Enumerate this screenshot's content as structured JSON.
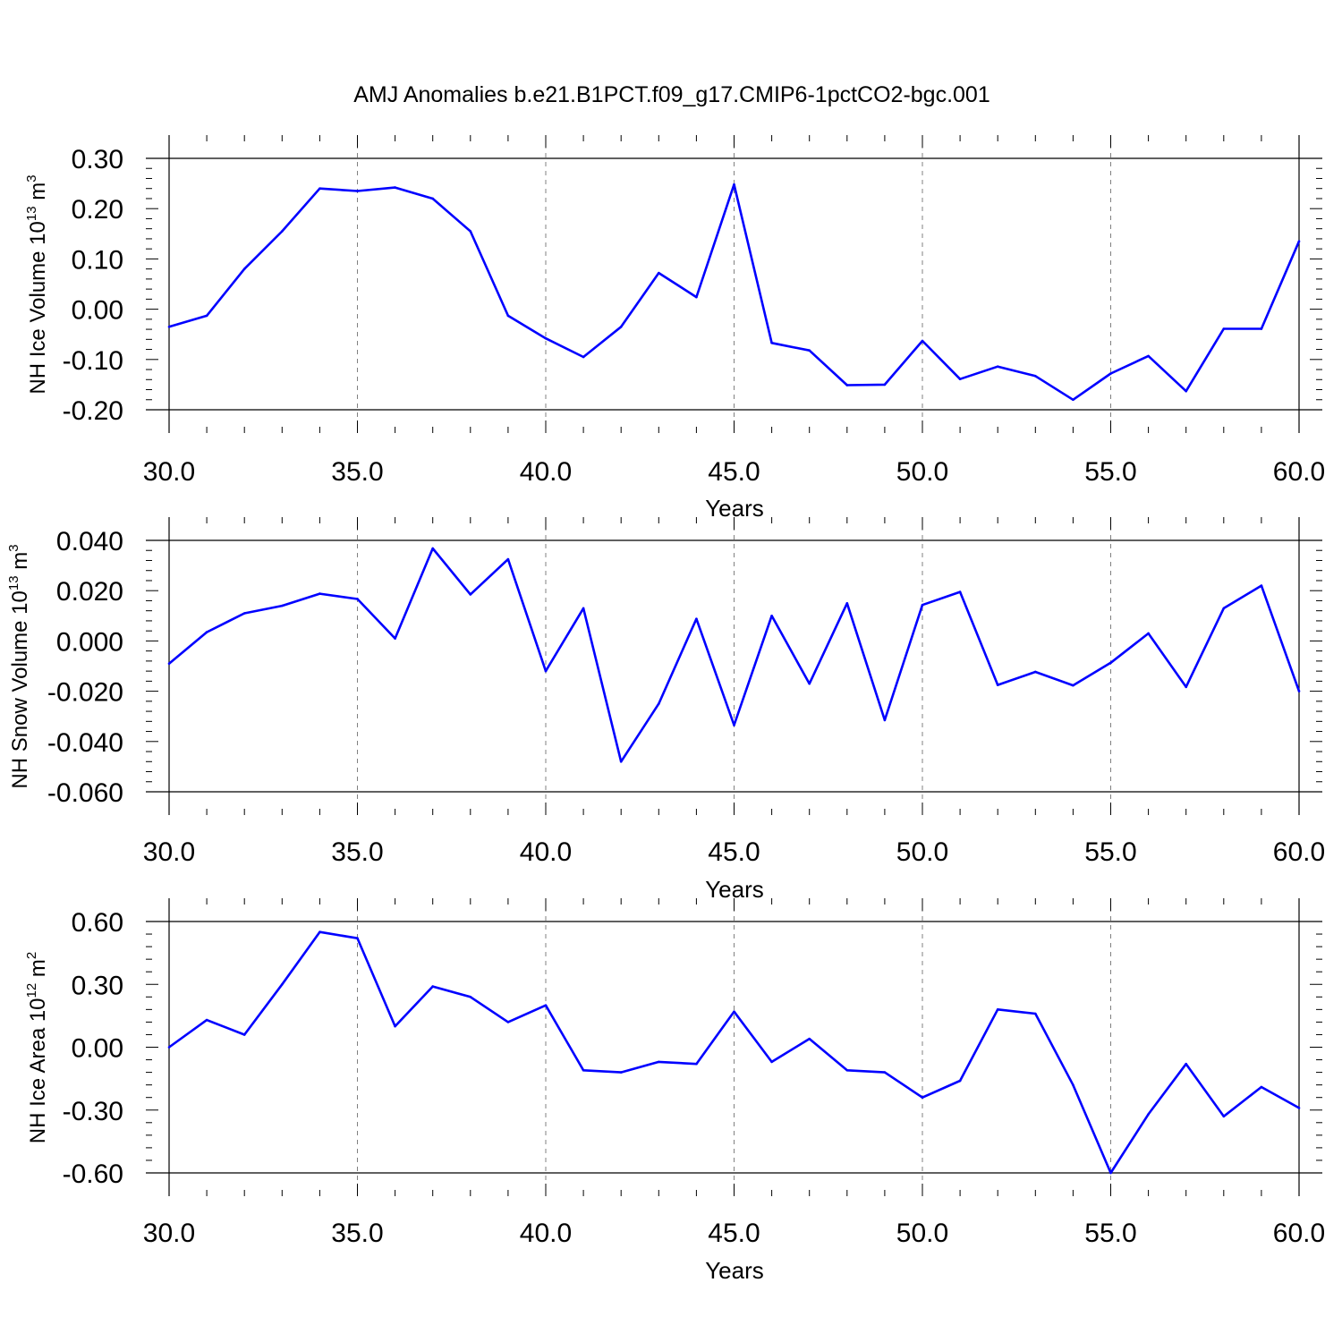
{
  "title": "AMJ Anomalies b.e21.B1PCT.f09_g17.CMIP6-1pctCO2-bgc.001",
  "chart_data": [
    {
      "type": "line",
      "title": "AMJ Anomalies b.e21.B1PCT.f09_g17.CMIP6-1pctCO2-bgc.001",
      "xlabel": "Years",
      "ylabel": {
        "text": "NH Ice Volume 10",
        "exp": "13",
        "unit": " m",
        "unit_exp": "3"
      },
      "xlim": [
        30,
        60
      ],
      "ylim": [
        -0.2,
        0.3
      ],
      "xticks": [
        "30.0",
        "35.0",
        "40.0",
        "45.0",
        "50.0",
        "55.0",
        "60.0"
      ],
      "yticks": [
        "0.30",
        "0.20",
        "0.10",
        "0.00",
        "-0.10",
        "-0.20"
      ],
      "yticks_values": [
        0.3,
        0.2,
        0.1,
        0.0,
        -0.1,
        -0.2
      ],
      "grid": "vertical dashed at major x ticks",
      "color": "#0000ff",
      "x": [
        30,
        31,
        32,
        33,
        34,
        35,
        36,
        37,
        38,
        39,
        40,
        41,
        42,
        43,
        44,
        45,
        46,
        47,
        48,
        49,
        50,
        51,
        52,
        53,
        54,
        55,
        56,
        57,
        58,
        59,
        60
      ],
      "values": [
        -0.035,
        -0.013,
        0.08,
        0.155,
        0.24,
        0.235,
        0.242,
        0.22,
        0.155,
        -0.013,
        -0.058,
        -0.095,
        -0.035,
        0.072,
        0.024,
        0.248,
        -0.067,
        -0.082,
        -0.151,
        -0.15,
        -0.063,
        -0.139,
        -0.114,
        -0.133,
        -0.18,
        -0.128,
        -0.093,
        -0.163,
        -0.039,
        -0.039,
        0.135
      ]
    },
    {
      "type": "line",
      "xlabel": "Years",
      "ylabel": {
        "text": "NH Snow Volume 10",
        "exp": "13",
        "unit": " m",
        "unit_exp": "3"
      },
      "xlim": [
        30,
        60
      ],
      "ylim": [
        -0.06,
        0.04
      ],
      "xticks": [
        "30.0",
        "35.0",
        "40.0",
        "45.0",
        "50.0",
        "55.0",
        "60.0"
      ],
      "yticks": [
        "0.040",
        "0.020",
        "0.000",
        "-0.020",
        "-0.040",
        "-0.060"
      ],
      "yticks_values": [
        0.04,
        0.02,
        0.0,
        -0.02,
        -0.04,
        -0.06
      ],
      "grid": "vertical dashed at major x ticks",
      "color": "#0000ff",
      "x": [
        30,
        31,
        32,
        33,
        34,
        35,
        36,
        37,
        38,
        39,
        40,
        41,
        42,
        43,
        44,
        45,
        46,
        47,
        48,
        49,
        50,
        51,
        52,
        53,
        54,
        55,
        56,
        57,
        58,
        59,
        60
      ],
      "values": [
        -0.009,
        0.0035,
        0.011,
        0.014,
        0.0188,
        0.0167,
        0.001,
        0.0368,
        0.0185,
        0.0325,
        -0.012,
        0.013,
        -0.048,
        -0.025,
        0.0088,
        -0.0335,
        0.01,
        -0.017,
        0.015,
        -0.0315,
        0.0143,
        0.0195,
        -0.0175,
        -0.0123,
        -0.0177,
        -0.0087,
        0.003,
        -0.0183,
        0.013,
        0.022,
        -0.02
      ]
    },
    {
      "type": "line",
      "xlabel": "Years",
      "ylabel": {
        "text": "NH Ice Area 10",
        "exp": "12",
        "unit": " m",
        "unit_exp": "2"
      },
      "xlim": [
        30,
        60
      ],
      "ylim": [
        -0.6,
        0.6
      ],
      "xticks": [
        "30.0",
        "35.0",
        "40.0",
        "45.0",
        "50.0",
        "55.0",
        "60.0"
      ],
      "yticks": [
        "0.60",
        "0.30",
        "0.00",
        "-0.30",
        "-0.60"
      ],
      "yticks_values": [
        0.6,
        0.3,
        0.0,
        -0.3,
        -0.6
      ],
      "grid": "vertical dashed at major x ticks",
      "color": "#0000ff",
      "x": [
        30,
        31,
        32,
        33,
        34,
        35,
        36,
        37,
        38,
        39,
        40,
        41,
        42,
        43,
        44,
        45,
        46,
        47,
        48,
        49,
        50,
        51,
        52,
        53,
        54,
        55,
        56,
        57,
        58,
        59,
        60
      ],
      "values": [
        0.0,
        0.13,
        0.06,
        0.3,
        0.55,
        0.52,
        0.1,
        0.29,
        0.24,
        0.12,
        0.2,
        -0.11,
        -0.12,
        -0.07,
        -0.08,
        0.17,
        -0.07,
        0.04,
        -0.11,
        -0.12,
        -0.24,
        -0.16,
        0.18,
        0.16,
        -0.18,
        -0.6,
        -0.32,
        -0.08,
        -0.33,
        -0.19,
        -0.29
      ]
    }
  ]
}
